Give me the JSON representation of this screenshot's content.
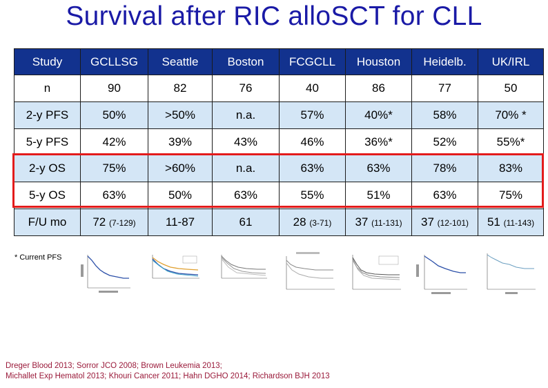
{
  "title": "Survival after RIC alloSCT for CLL",
  "table": {
    "header": [
      "Study",
      "GCLLSG",
      "Seattle",
      "Boston",
      "FCGCLL",
      "Houston",
      "Heidelb.",
      "UK/IRL"
    ],
    "rows": [
      {
        "label": "n",
        "style": "white",
        "cells": [
          "90",
          "82",
          "76",
          "40",
          "86",
          "77",
          "50"
        ]
      },
      {
        "label": "2-y PFS",
        "style": "blue",
        "cells": [
          ">50%",
          "n.a.",
          "57%",
          "40%*",
          "58%",
          "70% *"
        ],
        "first": "50%"
      },
      {
        "label": "5-y PFS",
        "style": "white",
        "cells": [
          "42%",
          "39%",
          "43%",
          "46%",
          "36%*",
          "52%",
          "55%*"
        ]
      },
      {
        "label": "2-y OS",
        "style": "blue",
        "cells": [
          "75%",
          ">60%",
          "n.a.",
          "63%",
          "63%",
          "78%",
          "83%"
        ]
      },
      {
        "label": "5-y OS",
        "style": "white",
        "cells": [
          "63%",
          "50%",
          "63%",
          "55%",
          "51%",
          "63%",
          "75%"
        ]
      }
    ],
    "fu": {
      "label": "F/U mo",
      "cells": [
        {
          "main": "72",
          "range": "(7-129)"
        },
        {
          "main": "11-87",
          "range": ""
        },
        {
          "main": "61",
          "range": ""
        },
        {
          "main": "28",
          "range": "(3-71)"
        },
        {
          "main": "37",
          "range": "(11-131)"
        },
        {
          "main": "37",
          "range": "(12-101)"
        },
        {
          "main": "51",
          "range": "(11-143)"
        }
      ]
    }
  },
  "footnote": "* Current PFS",
  "references": [
    "Dreger Blood 2013; Sorror JCO 2008; Brown Leukemia 2013;",
    "Michallet Exp Hematol 2013; Khouri Cancer 2011; Hahn DGHO 2014; Richardson BJH 2013"
  ],
  "colors": {
    "title": "#1a1aa6",
    "header_bg": "#12328e",
    "row_blue": "#d4e6f6",
    "highlight_box": "#e31b1b",
    "references": "#9a1a3a",
    "curve_blue": "#2b4fa8",
    "curve_orange": "#e0a030",
    "curve_grey": "#777777"
  }
}
